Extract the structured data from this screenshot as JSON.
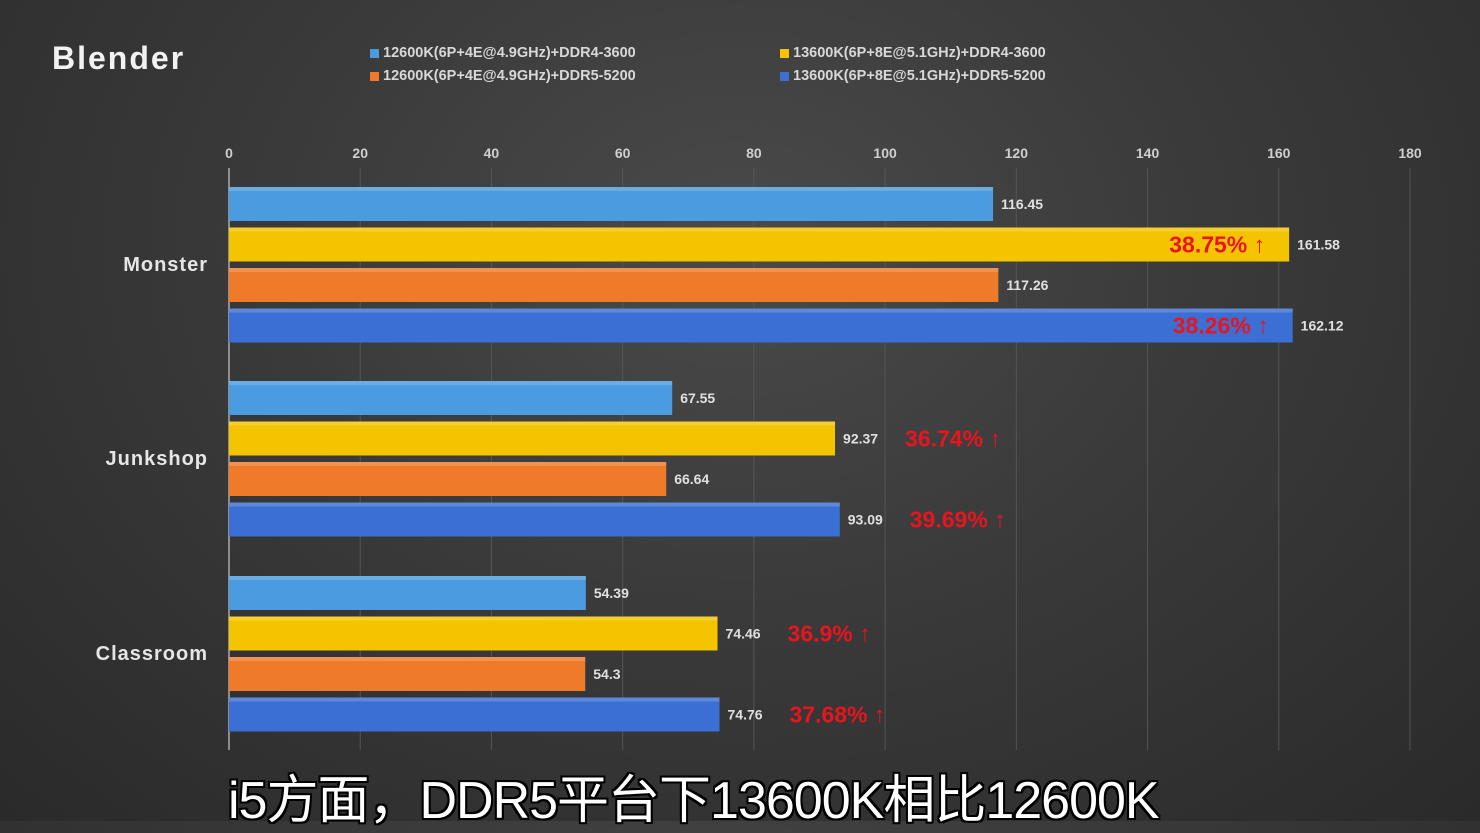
{
  "chart_data": {
    "type": "bar",
    "orientation": "horizontal",
    "title": "Blender",
    "categories": [
      "Monster",
      "Junkshop",
      "Classroom"
    ],
    "series": [
      {
        "name": "12600K(6P+4E@4.9GHz)+DDR4-3600",
        "color": "#4a9be0",
        "values": [
          116.45,
          67.55,
          54.39
        ]
      },
      {
        "name": "13600K(6P+8E@5.1GHz)+DDR4-3600",
        "color": "#f5c400",
        "values": [
          161.58,
          92.37,
          74.46
        ]
      },
      {
        "name": "12600K(6P+4E@4.9GHz)+DDR5-5200",
        "color": "#ee7a2a",
        "values": [
          117.26,
          66.64,
          54.3
        ]
      },
      {
        "name": "13600K(6P+8E@5.1GHz)+DDR5-5200",
        "color": "#3b6fd4",
        "values": [
          162.12,
          93.09,
          74.76
        ]
      }
    ],
    "value_labels": [
      [
        "116.45",
        "161.58",
        "117.26",
        "162.12"
      ],
      [
        "67.55",
        "92.37",
        "66.64",
        "93.09"
      ],
      [
        "54.39",
        "74.46",
        "54.3",
        "74.76"
      ]
    ],
    "annotations": [
      [
        null,
        "38.75% ↑",
        null,
        "38.26% ↑"
      ],
      [
        null,
        "36.74% ↑",
        null,
        "39.69% ↑"
      ],
      [
        null,
        "36.9% ↑",
        null,
        "37.68% ↑"
      ]
    ],
    "annotation_color": "#e8141e",
    "xlim": [
      0,
      180
    ],
    "xticks": [
      "0",
      "20",
      "40",
      "60",
      "80",
      "100",
      "120",
      "140",
      "160",
      "180"
    ],
    "grid": true,
    "legend_position": "top"
  },
  "subtitle": "i5方面，DDR5平台下13600K相比12600K"
}
